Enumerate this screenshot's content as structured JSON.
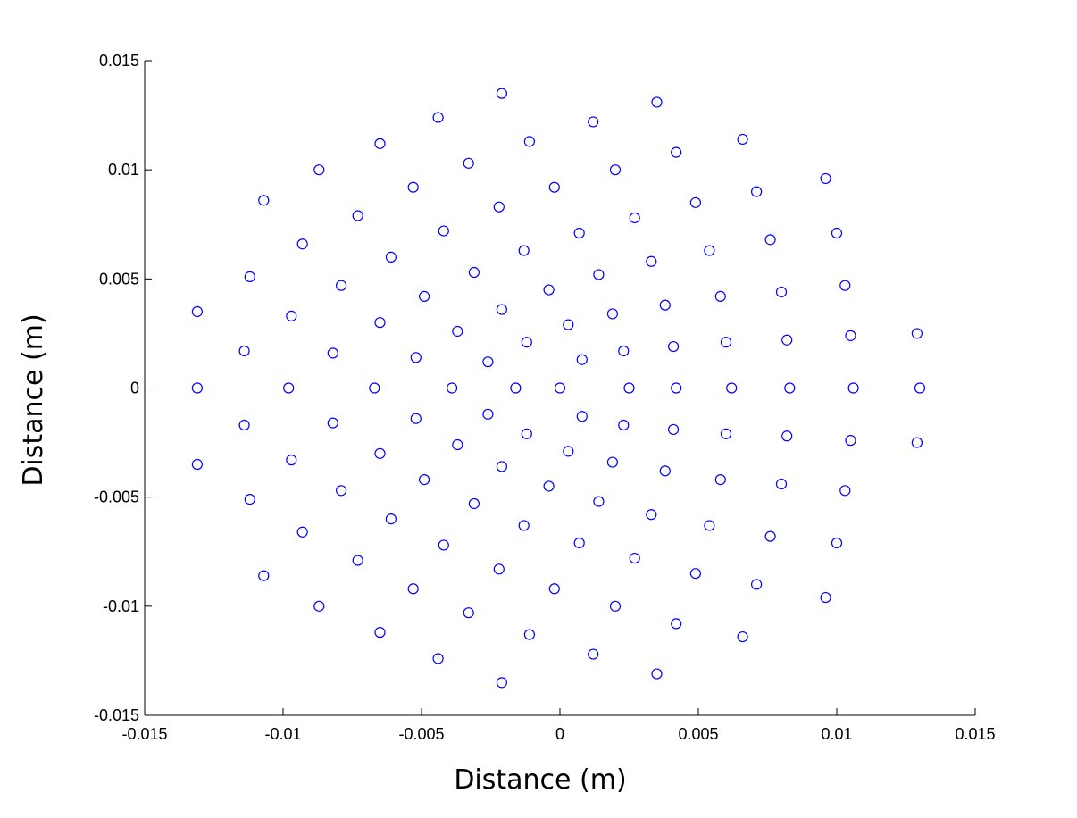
{
  "chart_data": {
    "type": "scatter",
    "xlabel": "Distance (m)",
    "ylabel": "Distance (m)",
    "xlim": [
      -0.015,
      0.015
    ],
    "ylim": [
      -0.015,
      0.015
    ],
    "xticks": [
      -0.015,
      -0.01,
      -0.005,
      0,
      0.005,
      0.01,
      0.015
    ],
    "yticks": [
      -0.015,
      -0.01,
      -0.005,
      0,
      0.005,
      0.01,
      0.015
    ],
    "xtick_labels": [
      "-0.015",
      "-0.01",
      "-0.005",
      "0",
      "0.005",
      "0.01",
      "0.015"
    ],
    "ytick_labels": [
      "-0.015",
      "-0.01",
      "-0.005",
      "0",
      "0.005",
      "0.01",
      "0.015"
    ],
    "grid": false,
    "marker": "open-circle",
    "marker_color": "#0000ff",
    "points": [
      [
        -0.0131,
        0.0
      ],
      [
        -0.0098,
        0.0
      ],
      [
        -0.0067,
        0.0
      ],
      [
        -0.0039,
        0.0
      ],
      [
        -0.0016,
        0.0
      ],
      [
        0.0,
        0.0
      ],
      [
        0.0025,
        0.0
      ],
      [
        0.0042,
        0.0
      ],
      [
        0.0062,
        0.0
      ],
      [
        0.0083,
        0.0
      ],
      [
        0.0106,
        0.0
      ],
      [
        0.013,
        0.0
      ],
      [
        -0.0131,
        0.0035
      ],
      [
        -0.0114,
        0.0017
      ],
      [
        -0.0112,
        0.0051
      ],
      [
        -0.0097,
        0.0033
      ],
      [
        -0.0082,
        0.0016
      ],
      [
        -0.0079,
        0.0047
      ],
      [
        -0.0065,
        0.003
      ],
      [
        -0.0052,
        0.0014
      ],
      [
        -0.0049,
        0.0042
      ],
      [
        -0.0037,
        0.0026
      ],
      [
        -0.0026,
        0.0012
      ],
      [
        -0.0021,
        0.0036
      ],
      [
        -0.0012,
        0.0021
      ],
      [
        -0.0004,
        0.0045
      ],
      [
        0.0003,
        0.0029
      ],
      [
        0.0008,
        0.0013
      ],
      [
        0.0019,
        0.0034
      ],
      [
        0.0023,
        0.0017
      ],
      [
        0.0038,
        0.0038
      ],
      [
        0.0041,
        0.0019
      ],
      [
        0.0058,
        0.0042
      ],
      [
        0.006,
        0.0021
      ],
      [
        0.008,
        0.0044
      ],
      [
        0.0082,
        0.0022
      ],
      [
        0.0103,
        0.0047
      ],
      [
        0.0105,
        0.0024
      ],
      [
        0.0129,
        0.0025
      ],
      [
        -0.0131,
        -0.0035
      ],
      [
        -0.0114,
        -0.0017
      ],
      [
        -0.0112,
        -0.0051
      ],
      [
        -0.0097,
        -0.0033
      ],
      [
        -0.0082,
        -0.0016
      ],
      [
        -0.0079,
        -0.0047
      ],
      [
        -0.0065,
        -0.003
      ],
      [
        -0.0052,
        -0.0014
      ],
      [
        -0.0049,
        -0.0042
      ],
      [
        -0.0037,
        -0.0026
      ],
      [
        -0.0026,
        -0.0012
      ],
      [
        -0.0021,
        -0.0036
      ],
      [
        -0.0012,
        -0.0021
      ],
      [
        -0.0004,
        -0.0045
      ],
      [
        0.0003,
        -0.0029
      ],
      [
        0.0008,
        -0.0013
      ],
      [
        0.0019,
        -0.0034
      ],
      [
        0.0023,
        -0.0017
      ],
      [
        0.0038,
        -0.0038
      ],
      [
        0.0041,
        -0.0019
      ],
      [
        0.0058,
        -0.0042
      ],
      [
        0.006,
        -0.0021
      ],
      [
        0.008,
        -0.0044
      ],
      [
        0.0082,
        -0.0022
      ],
      [
        0.0103,
        -0.0047
      ],
      [
        0.0105,
        -0.0024
      ],
      [
        0.0129,
        -0.0025
      ],
      [
        -0.0107,
        0.0086
      ],
      [
        -0.0093,
        0.0066
      ],
      [
        -0.0087,
        0.01
      ],
      [
        -0.0073,
        0.0079
      ],
      [
        -0.0061,
        0.006
      ],
      [
        -0.0065,
        0.0112
      ],
      [
        -0.0053,
        0.0092
      ],
      [
        -0.0042,
        0.0072
      ],
      [
        -0.0031,
        0.0053
      ],
      [
        -0.0044,
        0.0124
      ],
      [
        -0.0033,
        0.0103
      ],
      [
        -0.0022,
        0.0083
      ],
      [
        -0.0013,
        0.0063
      ],
      [
        -0.0021,
        0.0135
      ],
      [
        -0.0011,
        0.0113
      ],
      [
        -0.0002,
        0.0092
      ],
      [
        0.0007,
        0.0071
      ],
      [
        0.0014,
        0.0052
      ],
      [
        0.0012,
        0.0122
      ],
      [
        0.002,
        0.01
      ],
      [
        0.0027,
        0.0078
      ],
      [
        0.0033,
        0.0058
      ],
      [
        0.0035,
        0.0131
      ],
      [
        0.0042,
        0.0108
      ],
      [
        0.0049,
        0.0085
      ],
      [
        0.0054,
        0.0063
      ],
      [
        0.0066,
        0.0114
      ],
      [
        0.0071,
        0.009
      ],
      [
        0.0076,
        0.0068
      ],
      [
        0.0096,
        0.0096
      ],
      [
        0.01,
        0.0071
      ],
      [
        -0.0107,
        -0.0086
      ],
      [
        -0.0093,
        -0.0066
      ],
      [
        -0.0087,
        -0.01
      ],
      [
        -0.0073,
        -0.0079
      ],
      [
        -0.0061,
        -0.006
      ],
      [
        -0.0065,
        -0.0112
      ],
      [
        -0.0053,
        -0.0092
      ],
      [
        -0.0042,
        -0.0072
      ],
      [
        -0.0031,
        -0.0053
      ],
      [
        -0.0044,
        -0.0124
      ],
      [
        -0.0033,
        -0.0103
      ],
      [
        -0.0022,
        -0.0083
      ],
      [
        -0.0013,
        -0.0063
      ],
      [
        -0.0021,
        -0.0135
      ],
      [
        -0.0011,
        -0.0113
      ],
      [
        -0.0002,
        -0.0092
      ],
      [
        0.0007,
        -0.0071
      ],
      [
        0.0014,
        -0.0052
      ],
      [
        0.0012,
        -0.0122
      ],
      [
        0.002,
        -0.01
      ],
      [
        0.0027,
        -0.0078
      ],
      [
        0.0033,
        -0.0058
      ],
      [
        0.0035,
        -0.0131
      ],
      [
        0.0042,
        -0.0108
      ],
      [
        0.0049,
        -0.0085
      ],
      [
        0.0054,
        -0.0063
      ],
      [
        0.0066,
        -0.0114
      ],
      [
        0.0071,
        -0.009
      ],
      [
        0.0076,
        -0.0068
      ],
      [
        0.0096,
        -0.0096
      ],
      [
        0.01,
        -0.0071
      ]
    ]
  }
}
